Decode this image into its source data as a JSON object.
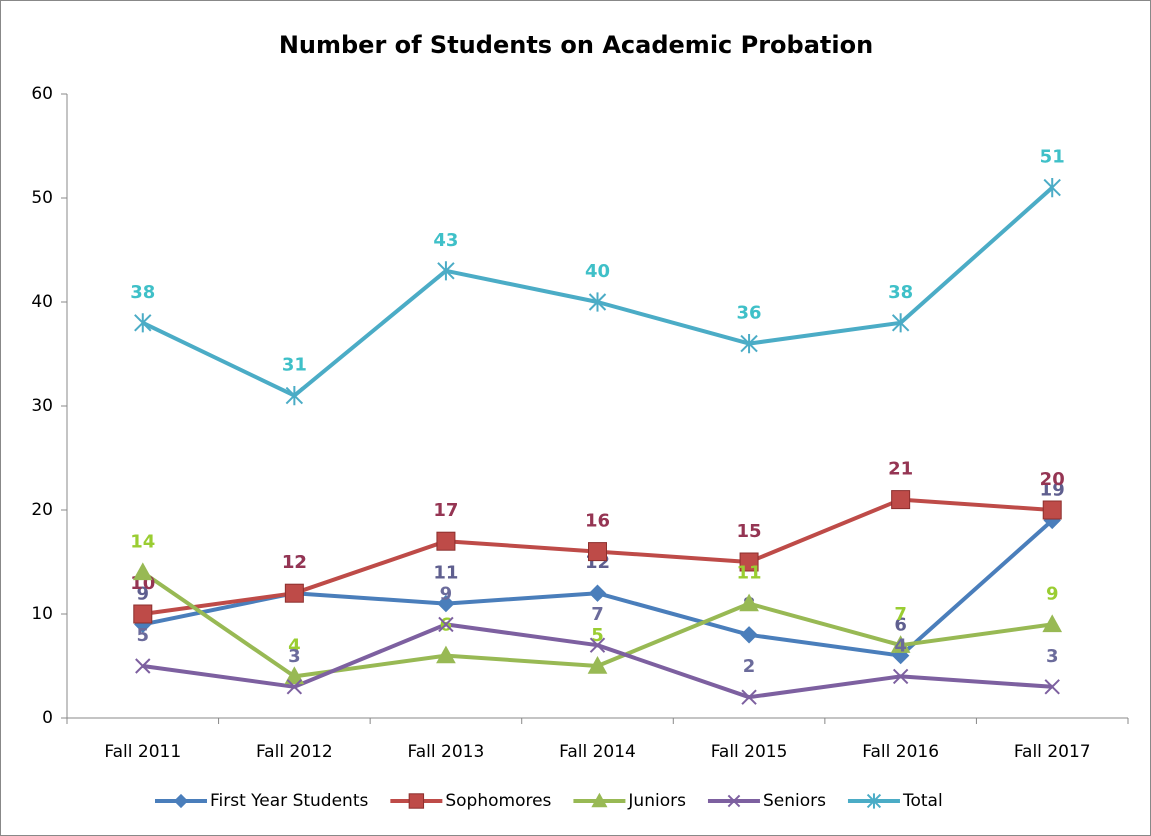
{
  "chart_data": {
    "type": "line",
    "title": "Number of Students on Academic Probation",
    "categories": [
      "Fall 2011",
      "Fall 2012",
      "Fall 2013",
      "Fall 2014",
      "Fall 2015",
      "Fall 2016",
      "Fall 2017"
    ],
    "series": [
      {
        "name": "First Year Students",
        "color": "#4a7ebb",
        "label_color": "#5f5f8f",
        "marker": "diamond",
        "values": [
          9,
          12,
          11,
          12,
          8,
          6,
          19
        ]
      },
      {
        "name": "Sophomores",
        "color": "#be4b48",
        "label_color": "#953553",
        "marker": "square",
        "values": [
          10,
          12,
          17,
          16,
          15,
          21,
          20
        ]
      },
      {
        "name": "Juniors",
        "color": "#98b954",
        "label_color": "#9acd32",
        "marker": "triangle",
        "values": [
          14,
          4,
          6,
          5,
          11,
          7,
          9
        ]
      },
      {
        "name": "Seniors",
        "color": "#7d60a0",
        "label_color": "#6b6b9b",
        "marker": "x",
        "values": [
          5,
          3,
          9,
          7,
          2,
          4,
          3
        ]
      },
      {
        "name": "Total",
        "color": "#4bacc6",
        "label_color": "#3fc0c8",
        "marker": "star",
        "values": [
          38,
          31,
          43,
          40,
          36,
          38,
          51
        ]
      }
    ],
    "ylim": [
      0,
      60
    ],
    "yticks": [
      0,
      10,
      20,
      30,
      40,
      50,
      60
    ],
    "legend": "bottom"
  }
}
